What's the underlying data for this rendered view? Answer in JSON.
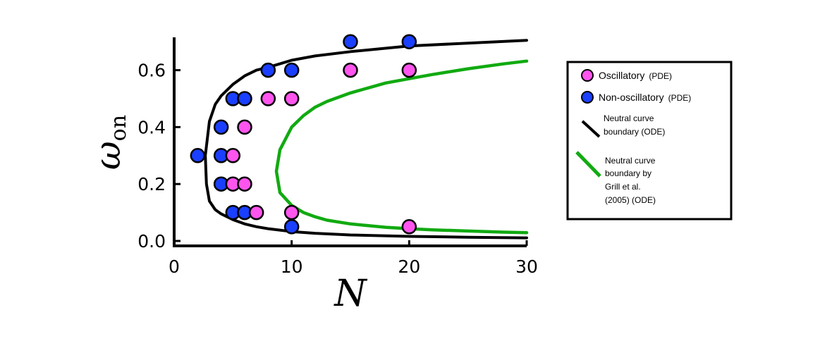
{
  "chart_data": {
    "type": "scatter",
    "xlabel": "N",
    "ylabel": {
      "main": "ω",
      "sub": "on"
    },
    "xlim": [
      0,
      30
    ],
    "ylim": [
      0,
      0.75
    ],
    "xticks": [
      0,
      10,
      20,
      30
    ],
    "yticks": [
      0.0,
      0.2,
      0.4,
      0.6
    ],
    "xtick_labels": [
      "0",
      "10",
      "20",
      "30"
    ],
    "ytick_labels": [
      "0.0",
      "0.2",
      "0.4",
      "0.6"
    ],
    "grid": false,
    "legend_position": "right-outside",
    "colors": {
      "oscillatory": "#ff55ee",
      "non_oscillatory": "#1a3fff",
      "neutral_ode": "#000000",
      "neutral_grill": "#11aa11"
    },
    "series": [
      {
        "name": "Oscillatory",
        "name_suffix": "(PDE)",
        "kind": "points",
        "color": "#ff55ee",
        "points": [
          [
            5,
            0.3
          ],
          [
            5,
            0.2
          ],
          [
            6,
            0.2
          ],
          [
            6,
            0.4
          ],
          [
            7,
            0.1
          ],
          [
            8,
            0.5
          ],
          [
            10,
            0.5
          ],
          [
            10,
            0.1
          ],
          [
            15,
            0.6
          ],
          [
            20,
            0.6
          ],
          [
            20,
            0.05
          ]
        ]
      },
      {
        "name": "Non-oscillatory",
        "name_suffix": "(PDE)",
        "kind": "points",
        "color": "#1a3fff",
        "points": [
          [
            2,
            0.3
          ],
          [
            4,
            0.3
          ],
          [
            4,
            0.2
          ],
          [
            4,
            0.4
          ],
          [
            5,
            0.5
          ],
          [
            6,
            0.5
          ],
          [
            5,
            0.1
          ],
          [
            6,
            0.1
          ],
          [
            8,
            0.6
          ],
          [
            10,
            0.6
          ],
          [
            10,
            0.05
          ],
          [
            15,
            0.7
          ],
          [
            20,
            0.7
          ]
        ]
      },
      {
        "name": "Neutral curve boundary (ODE)",
        "legend_lines": [
          "Neutral curve",
          "boundary (ODE)"
        ],
        "kind": "curve",
        "color": "#000000",
        "upper": [
          [
            2.65,
            0.3
          ],
          [
            3.0,
            0.42
          ],
          [
            3.5,
            0.48
          ],
          [
            4,
            0.51
          ],
          [
            5,
            0.55
          ],
          [
            6,
            0.58
          ],
          [
            7,
            0.6
          ],
          [
            8,
            0.61
          ],
          [
            10,
            0.635
          ],
          [
            12,
            0.65
          ],
          [
            15,
            0.665
          ],
          [
            20,
            0.685
          ],
          [
            25,
            0.695
          ],
          [
            30,
            0.705
          ]
        ],
        "lower": [
          [
            2.65,
            0.3
          ],
          [
            2.75,
            0.2
          ],
          [
            3.0,
            0.14
          ],
          [
            3.5,
            0.11
          ],
          [
            4,
            0.095
          ],
          [
            5,
            0.075
          ],
          [
            6,
            0.06
          ],
          [
            7,
            0.05
          ],
          [
            8,
            0.043
          ],
          [
            10,
            0.033
          ],
          [
            12,
            0.027
          ],
          [
            15,
            0.021
          ],
          [
            20,
            0.016
          ],
          [
            25,
            0.013
          ],
          [
            30,
            0.011
          ]
        ]
      },
      {
        "name": "Neutral curve boundary by Grill et al. (2005) (ODE)",
        "legend_lines": [
          "Neutral curve",
          "boundary by",
          "Grill et al.",
          "(2005) (ODE)"
        ],
        "kind": "curve",
        "color": "#11aa11",
        "upper": [
          [
            8.7,
            0.245
          ],
          [
            9.0,
            0.32
          ],
          [
            10,
            0.4
          ],
          [
            11,
            0.44
          ],
          [
            12,
            0.47
          ],
          [
            13,
            0.49
          ],
          [
            15,
            0.52
          ],
          [
            18,
            0.555
          ],
          [
            20,
            0.57
          ],
          [
            22,
            0.585
          ],
          [
            25,
            0.605
          ],
          [
            28,
            0.622
          ],
          [
            30,
            0.632
          ]
        ],
        "lower": [
          [
            8.7,
            0.245
          ],
          [
            9.0,
            0.17
          ],
          [
            10,
            0.125
          ],
          [
            11,
            0.1
          ],
          [
            12,
            0.085
          ],
          [
            13,
            0.073
          ],
          [
            15,
            0.06
          ],
          [
            18,
            0.048
          ],
          [
            20,
            0.043
          ],
          [
            22,
            0.039
          ],
          [
            25,
            0.035
          ],
          [
            28,
            0.031
          ],
          [
            30,
            0.029
          ]
        ]
      }
    ]
  }
}
